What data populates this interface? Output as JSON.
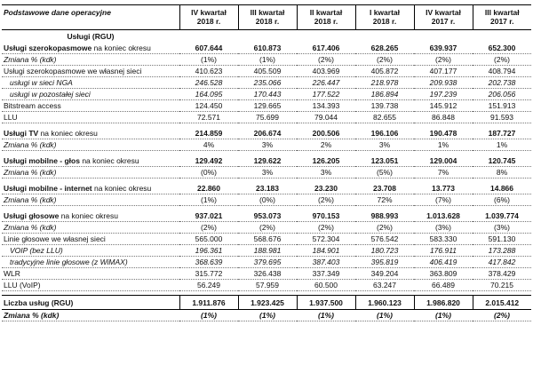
{
  "colors": {
    "background": "#ffffff",
    "text": "#111111",
    "rule": "#000000",
    "dotted_rule": "#777777"
  },
  "header": {
    "title": "Podstawowe dane operacyjne",
    "columns": [
      {
        "line1": "IV kwartał",
        "line2": "2018 r."
      },
      {
        "line1": "III kwartał",
        "line2": "2018 r."
      },
      {
        "line1": "II kwartał",
        "line2": "2018 r."
      },
      {
        "line1": "I kwartał",
        "line2": "2018 r."
      },
      {
        "line1": "IV kwartał",
        "line2": "2017 r."
      },
      {
        "line1": "III kwartał",
        "line2": "2017 r."
      }
    ]
  },
  "section_label": "Usługi (RGU)",
  "rows": [
    {
      "style": "main",
      "label": "Usługi szerokopasmowe",
      "suffix": " na koniec okresu",
      "values": [
        "607.644",
        "610.873",
        "617.406",
        "628.265",
        "639.937",
        "652.300"
      ]
    },
    {
      "style": "change",
      "label": "Zmiana % (kdk)",
      "values": [
        "(1%)",
        "(1%)",
        "(2%)",
        "(2%)",
        "(2%)",
        "(2%)"
      ]
    },
    {
      "style": "sub",
      "label": "Usługi szerokopasmowe we własnej sieci",
      "values": [
        "410.623",
        "405.509",
        "403.969",
        "405.872",
        "407.177",
        "408.794"
      ]
    },
    {
      "style": "subitalic",
      "label": "usługi w sieci NGA",
      "values": [
        "246.528",
        "235.066",
        "226.447",
        "218.978",
        "209.938",
        "202.738"
      ]
    },
    {
      "style": "subitalic",
      "label": "usługi w pozostałej sieci",
      "values": [
        "164.095",
        "170.443",
        "177.522",
        "186.894",
        "197.239",
        "206.056"
      ]
    },
    {
      "style": "sub",
      "label": "Bitstream access",
      "values": [
        "124.450",
        "129.665",
        "134.393",
        "139.738",
        "145.912",
        "151.913"
      ]
    },
    {
      "style": "sub",
      "label": "LLU",
      "values": [
        "72.571",
        "75.699",
        "79.044",
        "82.655",
        "86.848",
        "91.593"
      ]
    },
    {
      "style": "spacer"
    },
    {
      "style": "main",
      "label": "Usługi TV",
      "suffix": " na koniec okresu",
      "values": [
        "214.859",
        "206.674",
        "200.506",
        "196.106",
        "190.478",
        "187.727"
      ]
    },
    {
      "style": "change",
      "label": "Zmiana % (kdk)",
      "values": [
        "4%",
        "3%",
        "2%",
        "3%",
        "1%",
        "1%"
      ]
    },
    {
      "style": "spacer"
    },
    {
      "style": "main",
      "label": "Usługi mobilne - głos",
      "suffix": " na koniec okresu",
      "values": [
        "129.492",
        "129.622",
        "126.205",
        "123.051",
        "129.004",
        "120.745"
      ]
    },
    {
      "style": "change",
      "label": "Zmiana % (kdk)",
      "values": [
        "(0%)",
        "3%",
        "3%",
        "(5%)",
        "7%",
        "8%"
      ]
    },
    {
      "style": "spacer"
    },
    {
      "style": "main",
      "label": "Usługi mobilne - internet",
      "suffix": " na koniec okresu",
      "values": [
        "22.860",
        "23.183",
        "23.230",
        "23.708",
        "13.773",
        "14.866"
      ]
    },
    {
      "style": "change",
      "label": "Zmiana % (kdk)",
      "values": [
        "(1%)",
        "(0%)",
        "(2%)",
        "72%",
        "(7%)",
        "(6%)"
      ]
    },
    {
      "style": "spacer"
    },
    {
      "style": "main",
      "label": "Usługi głosowe",
      "suffix": " na koniec okresu",
      "values": [
        "937.021",
        "953.073",
        "970.153",
        "988.993",
        "1.013.628",
        "1.039.774"
      ]
    },
    {
      "style": "change",
      "label": "Zmiana % (kdk)",
      "values": [
        "(2%)",
        "(2%)",
        "(2%)",
        "(2%)",
        "(3%)",
        "(3%)"
      ]
    },
    {
      "style": "sub",
      "label": "Linie głosowe we własnej sieci",
      "values": [
        "565.000",
        "568.676",
        "572.304",
        "576.542",
        "583.330",
        "591.130"
      ]
    },
    {
      "style": "subitalic",
      "label": "VOIP (bez LLU)",
      "values": [
        "196.361",
        "188.981",
        "184.901",
        "180.723",
        "176.911",
        "173.288"
      ]
    },
    {
      "style": "subitalic",
      "label": "tradycyjne linie głosowe (z WiMAX)",
      "values": [
        "368.639",
        "379.695",
        "387.403",
        "395.819",
        "406.419",
        "417.842"
      ]
    },
    {
      "style": "sub",
      "label": "WLR",
      "values": [
        "315.772",
        "326.438",
        "337.349",
        "349.204",
        "363.809",
        "378.429"
      ]
    },
    {
      "style": "sub",
      "label": "LLU (VoIP)",
      "values": [
        "56.249",
        "57.959",
        "60.500",
        "63.247",
        "66.489",
        "70.215"
      ]
    },
    {
      "style": "spacer"
    },
    {
      "style": "total",
      "label": "Liczba usług (RGU)",
      "values": [
        "1.911.876",
        "1.923.425",
        "1.937.500",
        "1.960.123",
        "1.986.820",
        "2.015.412"
      ]
    },
    {
      "style": "totalchange",
      "label": "Zmiana % (kdk)",
      "values": [
        "(1%)",
        "(1%)",
        "(1%)",
        "(1%)",
        "(1%)",
        "(2%)"
      ]
    }
  ]
}
